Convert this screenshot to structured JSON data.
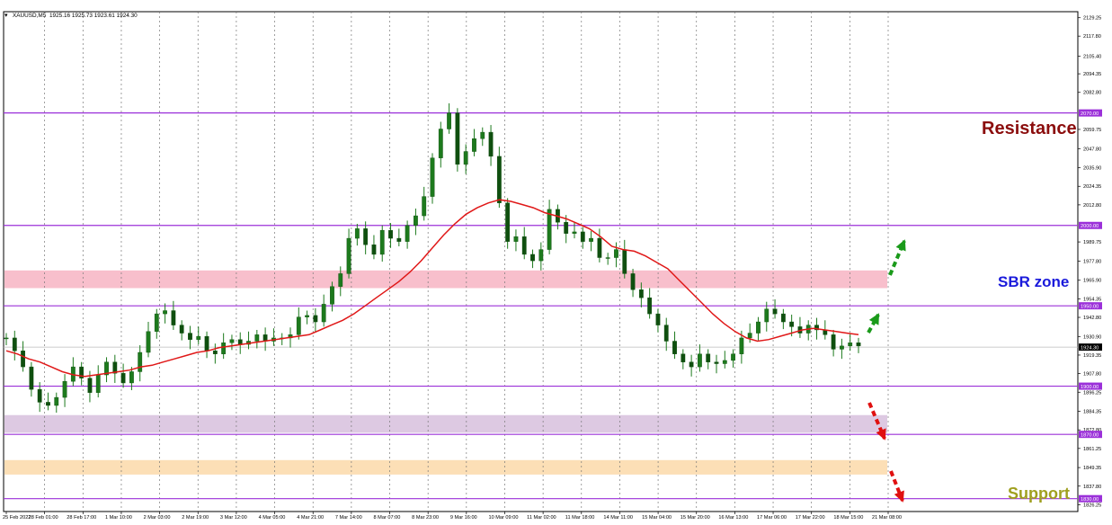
{
  "header": {
    "symbol": "XAUUSD,M5",
    "ohlc": "1925.16 1925.73 1923.61 1924.30"
  },
  "chart_data": {
    "type": "line",
    "title": "",
    "xlabel": "",
    "ylabel": "",
    "ylim": [
      1826.25,
      2129.25
    ],
    "price_ticks": [
      "2129.25",
      "2117.80",
      "2105.40",
      "2094.35",
      "2082.80",
      "2059.75",
      "2047.80",
      "2035.90",
      "2024.35",
      "2012.80",
      "1989.75",
      "1977.80",
      "1965.90",
      "1954.35",
      "1942.80",
      "1930.90",
      "1919.35",
      "1907.80",
      "1896.25",
      "1884.35",
      "1872.80",
      "1861.25",
      "1849.35",
      "1837.80",
      "1826.25"
    ],
    "time_ticks": [
      "25 Feb 2022",
      "28 Feb 01:00",
      "28 Feb 17:00",
      "1 Mar 10:00",
      "2 Mar 03:00",
      "2 Mar 19:00",
      "3 Mar 12:00",
      "4 Mar 05:00",
      "4 Mar 21:00",
      "7 Mar 14:00",
      "8 Mar 07:00",
      "8 Mar 23:00",
      "9 Mar 16:00",
      "10 Mar 09:00",
      "11 Mar 02:00",
      "11 Mar 18:00",
      "14 Mar 11:00",
      "15 Mar 04:00",
      "15 Mar 20:00",
      "16 Mar 13:00",
      "17 Mar 06:00",
      "17 Mar 22:00",
      "18 Mar 15:00",
      "21 Mar 08:00"
    ],
    "horizontal_levels": [
      {
        "value": 2070.0,
        "label": "2070.00"
      },
      {
        "value": 2000.0,
        "label": "2000.00"
      },
      {
        "value": 1950.0,
        "label": "1950.00"
      },
      {
        "value": 1900.0,
        "label": "1900.00"
      },
      {
        "value": 1870.0,
        "label": "1870.00"
      },
      {
        "value": 1830.0,
        "label": "1830.00"
      }
    ],
    "current_price": {
      "value": 1924.3,
      "label": "1924.30"
    },
    "zones": [
      {
        "name": "sbr",
        "from": 1961,
        "to": 1972,
        "color": "#f7b8c6"
      },
      {
        "name": "purple-support",
        "from": 1871,
        "to": 1882,
        "color": "#d9c3df"
      },
      {
        "name": "orange-support",
        "from": 1845,
        "to": 1854,
        "color": "#fcdcae"
      }
    ],
    "price_series": [
      1930,
      1922,
      1912,
      1898,
      1890,
      1888,
      1893,
      1903,
      1912,
      1905,
      1896,
      1907,
      1915,
      1908,
      1902,
      1909,
      1921,
      1934,
      1945,
      1947,
      1938,
      1933,
      1929,
      1931,
      1922,
      1920,
      1927,
      1929,
      1926,
      1928,
      1932,
      1928,
      1930,
      1930,
      1932,
      1943,
      1944,
      1940,
      1951,
      1962,
      1970,
      1992,
      1998,
      1988,
      1982,
      1997,
      1992,
      1990,
      2000,
      2006,
      2018,
      2042,
      2060,
      2070,
      2038,
      2046,
      2054,
      2058,
      2043,
      2014,
      1990,
      1993,
      1982,
      1978,
      1985,
      2010,
      2002,
      1995,
      1996,
      1990,
      1992,
      1980,
      1980,
      1985,
      1970,
      1960,
      1955,
      1945,
      1938,
      1928,
      1920,
      1915,
      1912,
      1920,
      1915,
      1914,
      1916,
      1920,
      1930,
      1933,
      1940,
      1948,
      1945,
      1940,
      1937,
      1933,
      1938,
      1935,
      1932,
      1923,
      1925,
      1927,
      1925
    ],
    "ema_series": [
      1922,
      1920,
      1917,
      1915,
      1912,
      1909,
      1907,
      1906,
      1907,
      1908,
      1909,
      1910,
      1912,
      1913,
      1915,
      1917,
      1919,
      1921,
      1922,
      1924,
      1925,
      1926,
      1927,
      1928,
      1929,
      1930,
      1931,
      1932,
      1935,
      1938,
      1941,
      1945,
      1950,
      1955,
      1960,
      1965,
      1971,
      1978,
      1986,
      1994,
      2001,
      2007,
      2011,
      2014,
      2016,
      2015,
      2013,
      2011,
      2008,
      2006,
      2004,
      2001,
      1998,
      1993,
      1987,
      1985,
      1984,
      1981,
      1977,
      1973,
      1966,
      1959,
      1952,
      1945,
      1939,
      1934,
      1930,
      1928,
      1929,
      1931,
      1933,
      1935,
      1936,
      1935,
      1934,
      1933,
      1932
    ],
    "annotations": {
      "resistance": "Resistance",
      "sbr": "SBR zone",
      "support": "Support"
    },
    "colors": {
      "level": "#9b30d9",
      "ema": "#e01818",
      "candle_up": "#1d7a1d",
      "candle_down": "#1d7a1d",
      "resistance_text": "#8b0d0d",
      "sbr_text": "#1a1adb",
      "support_text": "#a0a020",
      "arrow_up": "#1a9a1a",
      "arrow_down": "#e01010"
    }
  }
}
